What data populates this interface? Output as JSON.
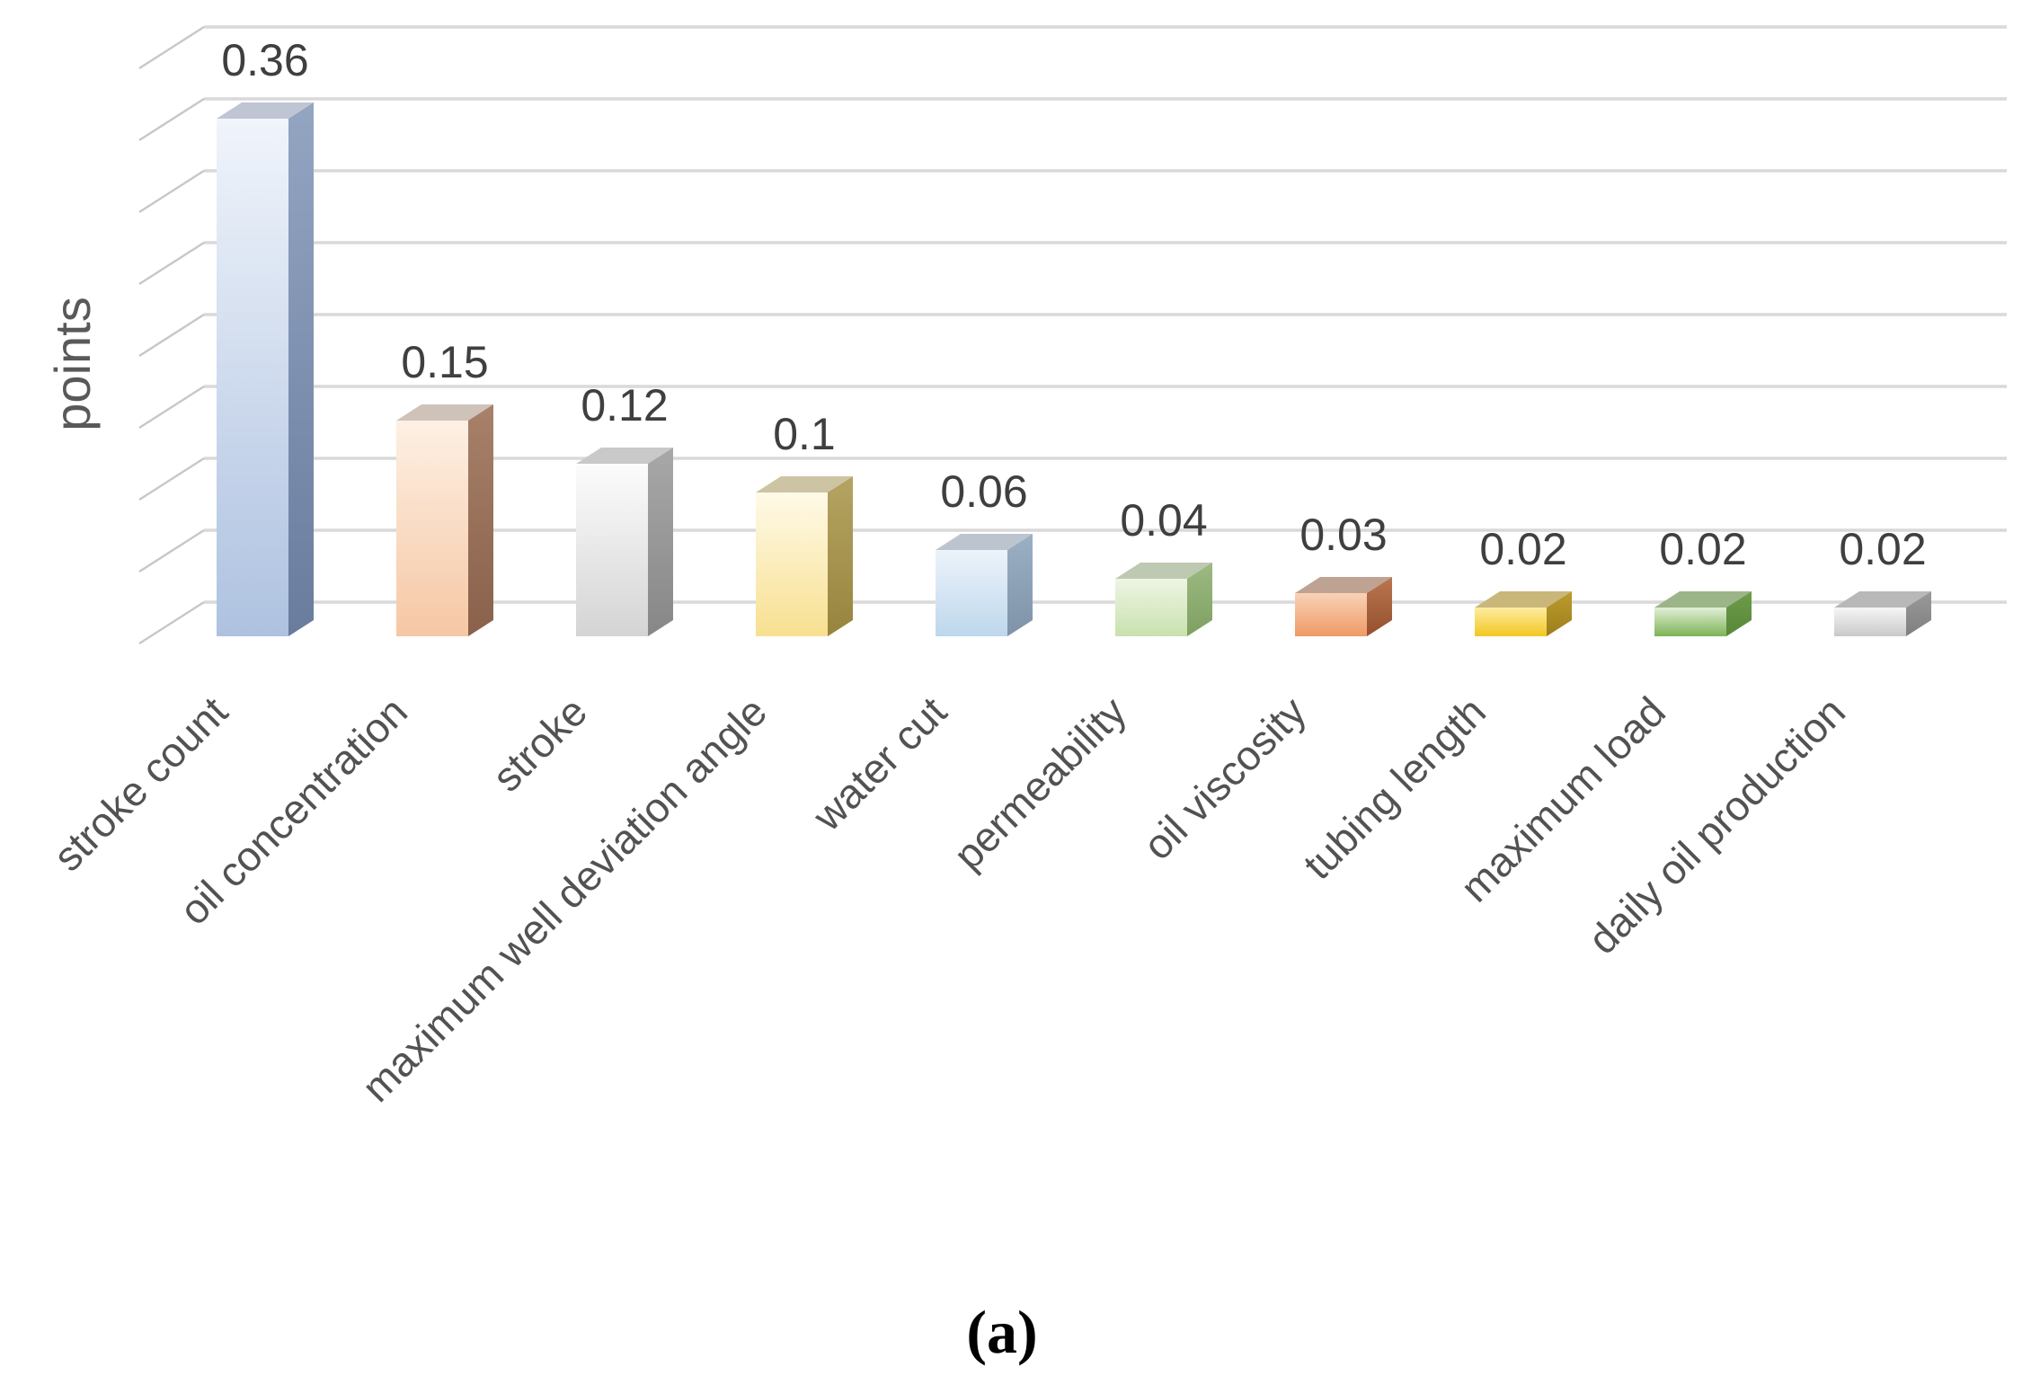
{
  "figure": {
    "caption": "(a)"
  },
  "chart_data": {
    "type": "bar",
    "variant": "3d-column-single-series",
    "title": "",
    "xlabel": "",
    "ylabel": "points",
    "legend_position": "none",
    "grid": true,
    "ylim": [
      0,
      0.4
    ],
    "y_major_step": 0.05,
    "y_tick_labels_shown": false,
    "categories": [
      "stroke count",
      "oil concentration",
      "stroke",
      "maximum well deviation angle",
      "water cut",
      "permeability",
      "oil viscosity",
      "tubing length",
      "maximum load",
      "daily oil production"
    ],
    "values": [
      0.36,
      0.15,
      0.12,
      0.1,
      0.06,
      0.04,
      0.03,
      0.02,
      0.02,
      0.02
    ],
    "data_labels": [
      "0.36",
      "0.15",
      "0.12",
      "0.1",
      "0.06",
      "0.04",
      "0.03",
      "0.02",
      "0.02",
      "0.02"
    ],
    "colors": {
      "background": "#ffffff",
      "gridline": "#d9d9d9",
      "tick": "#c8c8c8",
      "value_label": "#3f3f3f",
      "category_label": "#525252",
      "axis_title": "#595959",
      "caption": "#000000"
    },
    "bar_palette": [
      {
        "name": "blue",
        "front_top": "#f0f4fb",
        "front_bottom": "#aec2e0",
        "side_top": "#94a5c2",
        "side_bottom": "#697c9e",
        "top": "#bfc5d2"
      },
      {
        "name": "orange",
        "front_top": "#fdf0e4",
        "front_bottom": "#f6c7a4",
        "side_top": "#a7816a",
        "side_bottom": "#8a614b",
        "top": "#cfc2b8"
      },
      {
        "name": "gray",
        "front_top": "#fcfcfc",
        "front_bottom": "#d4d4d4",
        "side_top": "#a8a8a8",
        "side_bottom": "#878787",
        "top": "#c9c9c9"
      },
      {
        "name": "yellow",
        "front_top": "#fefae8",
        "front_bottom": "#f8e090",
        "side_top": "#b5a462",
        "side_bottom": "#97843e",
        "top": "#cdc4a3"
      },
      {
        "name": "light-blue",
        "front_top": "#ecf3fa",
        "front_bottom": "#bed7ec",
        "side_top": "#9cb0c5",
        "side_bottom": "#7e93a8",
        "top": "#bcc5cf"
      },
      {
        "name": "green",
        "front_top": "#eef5e4",
        "front_bottom": "#c9e1ae",
        "side_top": "#9cba82",
        "side_bottom": "#7fa061",
        "top": "#bec9b1"
      },
      {
        "name": "orange-2",
        "front_top": "#f9d2b6",
        "front_bottom": "#ee9a66",
        "side_top": "#b97650",
        "side_bottom": "#95502e",
        "top": "#bfa392"
      },
      {
        "name": "gold",
        "front_top": "#fdeca1",
        "front_bottom": "#f3c722",
        "side_top": "#bd9a2e",
        "side_bottom": "#9c7f1c",
        "top": "#c9b77a"
      },
      {
        "name": "green-2",
        "front_top": "#e2efd7",
        "front_bottom": "#7db356",
        "side_top": "#6d9c4a",
        "side_bottom": "#578739",
        "top": "#9cb588"
      },
      {
        "name": "gray-2",
        "front_top": "#f6f6f6",
        "front_bottom": "#c9c9c9",
        "side_top": "#9a9a9a",
        "side_bottom": "#7f7f7f",
        "top": "#b8b8b8"
      }
    ]
  }
}
